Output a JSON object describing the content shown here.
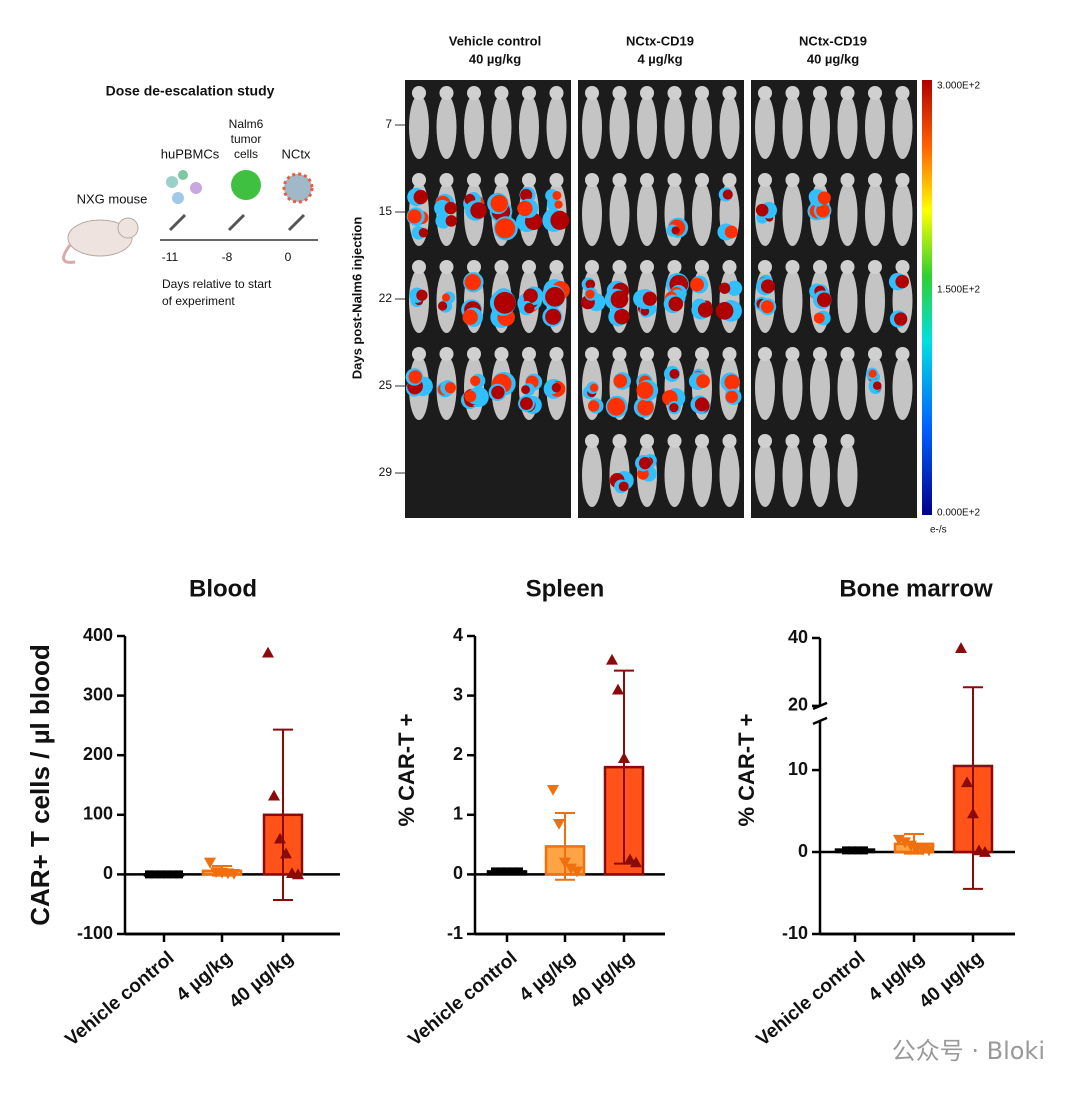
{
  "schematic": {
    "title": "Dose de-escalation study",
    "mouse": "NXG mouse",
    "agents": [
      "huPBMCs",
      "Nalm6",
      "tumor",
      "cells",
      "NCtx"
    ],
    "days": [
      "-11",
      "-8",
      "0"
    ],
    "caption": [
      "Days relative to start",
      "of experiment"
    ]
  },
  "imaging": {
    "columns": [
      {
        "name": "Vehicle control",
        "dose": "40 µg/kg"
      },
      {
        "name": "NCtx-CD19",
        "dose": "4 µg/kg"
      },
      {
        "name": "NCtx-CD19",
        "dose": "40 µg/kg"
      }
    ],
    "ylabel": "Days post-Nalm6 injection",
    "days": [
      "7",
      "15",
      "22",
      "25",
      "29"
    ],
    "colorbar": [
      "3.000E+2",
      "1.500E+2",
      "0.000E+2"
    ],
    "colorbar_unit": "e-/s"
  },
  "watermark": "公众号 · Bloki",
  "chart_data": [
    {
      "type": "bar",
      "title": "Blood",
      "ylabel": "CAR+ T cells / µl blood",
      "categories": [
        "Vehicle control",
        "4 µg/kg",
        "40 µg/kg"
      ],
      "values": [
        0,
        6,
        100
      ],
      "errors": [
        1,
        8,
        143
      ],
      "points": [
        [
          0,
          0,
          0,
          0,
          0,
          0
        ],
        [
          20,
          4,
          3,
          2,
          1
        ],
        [
          372,
          132,
          60,
          35,
          2,
          0
        ]
      ],
      "markers": [
        "square",
        "triangle-down",
        "triangle-up"
      ],
      "colors": [
        "#000000",
        "#ff9a30",
        "#ff4000"
      ],
      "edge_colors": [
        "#000000",
        "#f07010",
        "#8b0a0a"
      ],
      "ylim": [
        -100,
        400
      ],
      "yticks": [
        -100,
        0,
        100,
        200,
        300,
        400
      ]
    },
    {
      "type": "bar",
      "title": "Spleen",
      "ylabel": "% CAR-T +",
      "categories": [
        "Vehicle control",
        "4 µg/kg",
        "40 µg/kg"
      ],
      "values": [
        0.05,
        0.47,
        1.8
      ],
      "errors": [
        0.02,
        0.56,
        1.62
      ],
      "points": [
        [
          0.05,
          0.05,
          0.05,
          0.05,
          0.05
        ],
        [
          1.42,
          0.85,
          0.2,
          0.1,
          0.05
        ],
        [
          3.6,
          3.1,
          1.95,
          0.25,
          0.2
        ]
      ],
      "markers": [
        "square",
        "triangle-down",
        "triangle-up"
      ],
      "colors": [
        "#000000",
        "#ff9a30",
        "#ff4000"
      ],
      "edge_colors": [
        "#000000",
        "#f07010",
        "#8b0a0a"
      ],
      "ylim": [
        -1,
        4
      ],
      "yticks": [
        -1,
        0,
        1,
        2,
        3,
        4
      ]
    },
    {
      "type": "bar",
      "title": "Bone marrow",
      "ylabel": "% CAR-T +",
      "categories": [
        "Vehicle control",
        "4 µg/kg",
        "40 µg/kg"
      ],
      "values": [
        0.3,
        1.0,
        10.5
      ],
      "errors": [
        0.2,
        1.2,
        15
      ],
      "points": [
        [
          0.2,
          0.2,
          0.2,
          0.2
        ],
        [
          1.5,
          1.2,
          0.8,
          0.5,
          0.3,
          0.2
        ],
        [
          37,
          8.5,
          4.7,
          0.2,
          0
        ]
      ],
      "markers": [
        "square",
        "triangle-down",
        "triangle-up"
      ],
      "colors": [
        "#000000",
        "#ff9a30",
        "#ff4000"
      ],
      "edge_colors": [
        "#000000",
        "#f07010",
        "#8b0a0a"
      ],
      "ylim": [
        -10,
        40
      ],
      "yticks": [
        -10,
        0,
        10,
        20,
        40
      ],
      "axis_break": [
        16,
        20
      ]
    }
  ]
}
